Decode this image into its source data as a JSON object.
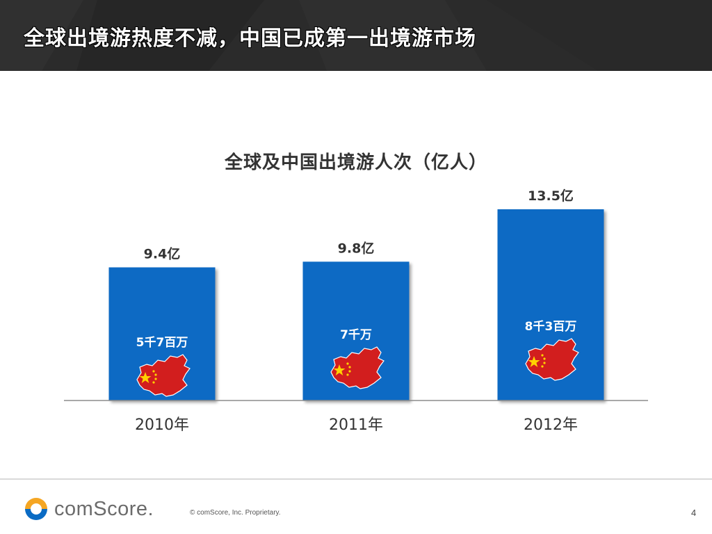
{
  "header": {
    "title": "全球出境游热度不减，中国已成第一出境游市场"
  },
  "chart_data": {
    "type": "bar",
    "title": "全球及中国出境游人次（亿人）",
    "categories": [
      "2010年",
      "2011年",
      "2012年"
    ],
    "series": [
      {
        "values": [
          9.4,
          9.8,
          13.5
        ],
        "labels": [
          "9.4亿",
          "9.8亿",
          "13.5亿"
        ],
        "inner_labels": [
          "5千7百万",
          "7千万",
          "8千3百万"
        ],
        "china_values": [
          0.57,
          0.7,
          0.83
        ]
      }
    ],
    "ylim": [
      0,
      15
    ],
    "grid": false,
    "bar_color": "#0a6bc4",
    "icon": "china-flag-map-icon"
  },
  "footer": {
    "logo_text": "comScore.",
    "copyright": "© comScore, Inc.    Proprietary.",
    "page": "4"
  }
}
